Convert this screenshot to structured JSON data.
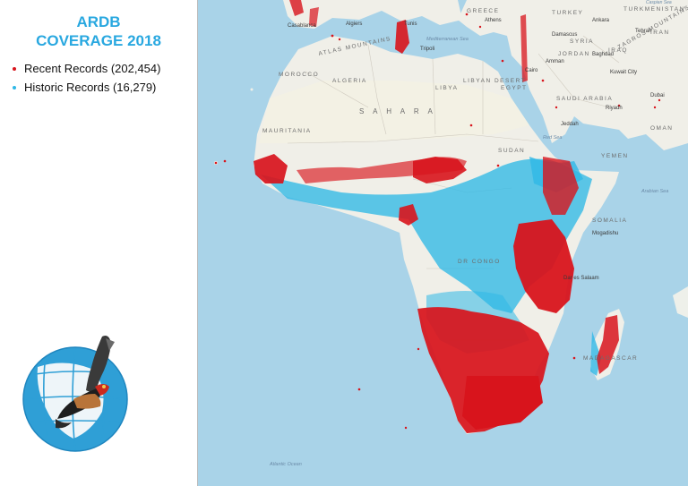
{
  "title": {
    "line1": "ARDB",
    "line2": "COVERAGE 2018"
  },
  "legend": [
    {
      "label": "Recent Records (202,454)",
      "color": "#d8141c"
    },
    {
      "label": "Historic Records (16,279)",
      "color": "#2fb8e6"
    }
  ],
  "colors": {
    "title": "#29a8e0",
    "ocean": "#a9d3e8",
    "land": "#f0efe8",
    "sahara": "#f3f1e4"
  },
  "logo": {
    "icon": "globe-with-bateleur-eagle-icon"
  },
  "map_labels": {
    "regions": [
      "ALGERIA",
      "LIBYA",
      "EGYPT",
      "SAUDI ARABIA",
      "MOROCCO",
      "MAURITANIA",
      "SUDAN",
      "SOMALIA",
      "OMAN",
      "YEMEN",
      "GREECE",
      "TURKEY",
      "SYRIA",
      "IRAQ",
      "IRAN",
      "TURKMENISTAN",
      "JORDAN",
      "MADAGASCAR",
      "DR CONGO"
    ],
    "deserts": [
      "S A H A R A",
      "LIBYAN DESERT"
    ],
    "cities": [
      "Casablanca",
      "Algiers",
      "Tunis",
      "Tripoli",
      "Cairo",
      "Riyadh",
      "Jeddah",
      "Baghdad",
      "Tehran",
      "Damascus",
      "Dubai",
      "Mogadishu",
      "Dar es Salaam",
      "Ankara",
      "Athens",
      "Kuwait City",
      "Amman"
    ],
    "features": [
      "ATLAS MOUNTAINS",
      "ZAGROS MOUNTAINS"
    ],
    "seas": [
      "Atlantic Ocean",
      "Mediterranean Sea",
      "Red Sea",
      "Arabian Sea",
      "Caspian Sea"
    ]
  }
}
